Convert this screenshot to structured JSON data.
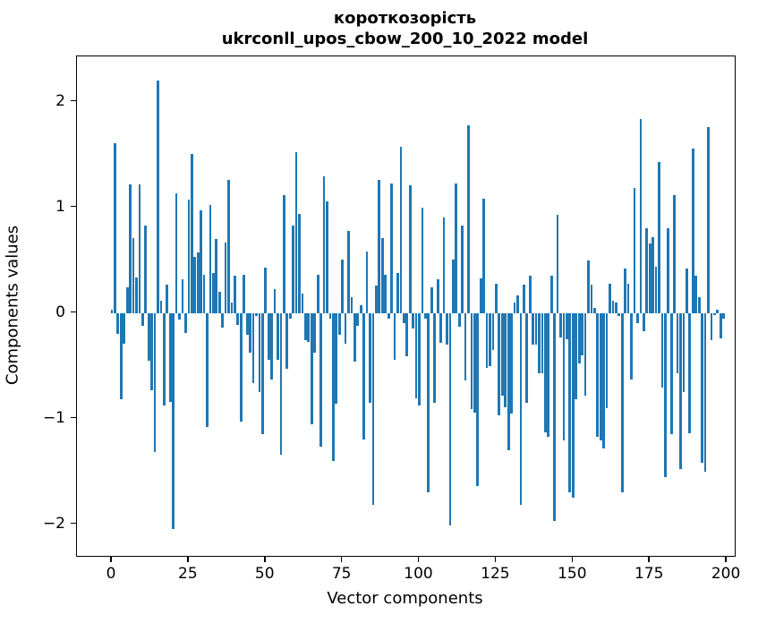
{
  "figure": {
    "title_line1": "короткозорість",
    "title_line2": "ukrconll_upos_cbow_200_10_2022 model",
    "xlabel": "Vector components",
    "ylabel": "Components values"
  },
  "chart_data": {
    "type": "bar",
    "title": "короткозорість\nukrconll_upos_cbow_200_10_2022 model",
    "xlabel": "Vector components",
    "ylabel": "Components values",
    "bar_color": "#1f77b4",
    "grid": false,
    "legend_position": "none",
    "x_start": 0,
    "x_end": 199,
    "xticks": [
      0,
      25,
      50,
      75,
      100,
      125,
      150,
      175,
      200
    ],
    "yticks": [
      -2,
      -1,
      0,
      1,
      2
    ],
    "xlim": [
      -11.35,
      202.6
    ],
    "ylim": [
      -2.3,
      2.43
    ],
    "bar_width_data": 0.8,
    "values": [
      0.03,
      1.61,
      -0.2,
      -0.82,
      -0.29,
      0.24,
      1.22,
      0.71,
      0.34,
      1.22,
      -0.12,
      0.83,
      -0.45,
      -0.73,
      -1.32,
      2.2,
      0.12,
      -0.88,
      0.27,
      -0.84,
      -2.05,
      1.13,
      -0.06,
      0.32,
      -0.19,
      1.07,
      1.51,
      0.53,
      0.57,
      0.97,
      0.36,
      -1.08,
      1.02,
      0.38,
      0.7,
      0.2,
      -0.14,
      0.67,
      1.26,
      0.1,
      0.35,
      -0.11,
      -1.03,
      0.36,
      -0.21,
      -0.38,
      -0.66,
      -0.03,
      -0.75,
      -1.15,
      0.43,
      -0.44,
      -0.63,
      0.23,
      -0.44,
      -1.34,
      1.12,
      -0.53,
      -0.05,
      0.83,
      1.52,
      0.94,
      0.18,
      -0.26,
      -0.27,
      -1.05,
      -0.38,
      0.36,
      -1.27,
      1.29,
      1.06,
      -0.05,
      -1.4,
      -0.86,
      -0.21,
      0.51,
      -0.29,
      0.78,
      0.15,
      -0.46,
      -0.12,
      0.07,
      -1.2,
      0.58,
      -0.85,
      -1.82,
      0.26,
      1.26,
      0.71,
      0.36,
      -0.05,
      1.23,
      -0.44,
      0.38,
      1.57,
      -0.1,
      -0.41,
      1.21,
      -0.15,
      -0.81,
      -0.88,
      1.0,
      -0.05,
      -1.7,
      0.24,
      -0.85,
      0.32,
      -0.28,
      0.9,
      -0.3,
      -2.01,
      0.51,
      1.23,
      -0.13,
      0.83,
      -0.64,
      1.78,
      -0.91,
      -0.94,
      -1.64,
      0.33,
      1.08,
      -0.52,
      -0.5,
      -0.35,
      0.28,
      -0.97,
      -0.78,
      -0.89,
      -1.3,
      -0.95,
      0.1,
      0.17,
      -1.82,
      0.27,
      -0.85,
      0.35,
      -0.3,
      -0.3,
      -0.57,
      -0.57,
      -1.13,
      -1.17,
      0.35,
      -1.97,
      0.93,
      -0.23,
      -1.21,
      -0.25,
      -1.7,
      -1.75,
      -0.82,
      -0.48,
      -0.4,
      -0.78,
      0.5,
      0.27,
      0.05,
      -1.17,
      -1.21,
      -1.28,
      -0.9,
      0.28,
      0.12,
      0.1,
      -0.03,
      -1.7,
      0.42,
      0.28,
      -0.63,
      1.18,
      -0.1,
      1.84,
      -0.17,
      0.8,
      0.66,
      0.72,
      0.44,
      1.43,
      -0.71,
      -1.55,
      0.8,
      -1.15,
      1.12,
      -0.57,
      -1.48,
      -0.75,
      0.42,
      -1.14,
      1.56,
      0.35,
      0.15,
      -1.42,
      -1.5,
      1.76,
      -0.26,
      -0.02,
      0.03,
      -0.24,
      -0.05
    ]
  }
}
